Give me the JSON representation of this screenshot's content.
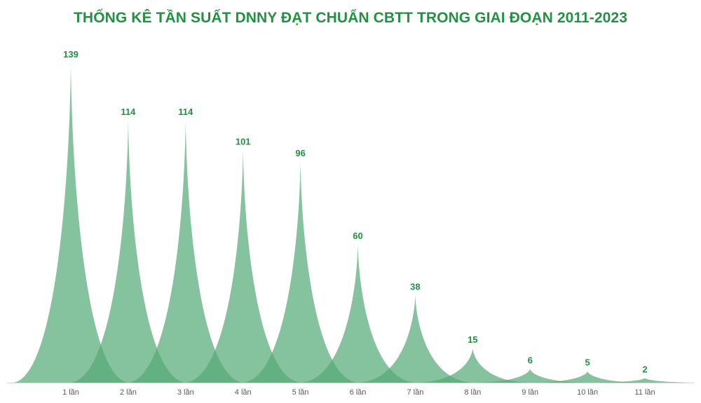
{
  "colors": {
    "title": "#1f9340",
    "peak": "#56ab79",
    "label": "#1f9340",
    "axis": "#d9d9d9",
    "tick": "#595959"
  },
  "chart_data": {
    "type": "area",
    "title": "THỐNG KÊ TẦN SUẤT DNNY ĐẠT CHUẨN CBTT TRONG GIAI ĐOẠN 2011-2023",
    "xlabel": "",
    "ylabel": "",
    "categories": [
      "1 lần",
      "2 lần",
      "3 lần",
      "4 lần",
      "5 lần",
      "6 lần",
      "7 lần",
      "8 lần",
      "9 lần",
      "10 lần",
      "11 lần"
    ],
    "values": [
      139,
      114,
      114,
      101,
      96,
      60,
      38,
      15,
      6,
      5,
      2
    ],
    "ylim": [
      0,
      139
    ],
    "grid": false,
    "legend": "none",
    "data_labels": true
  }
}
